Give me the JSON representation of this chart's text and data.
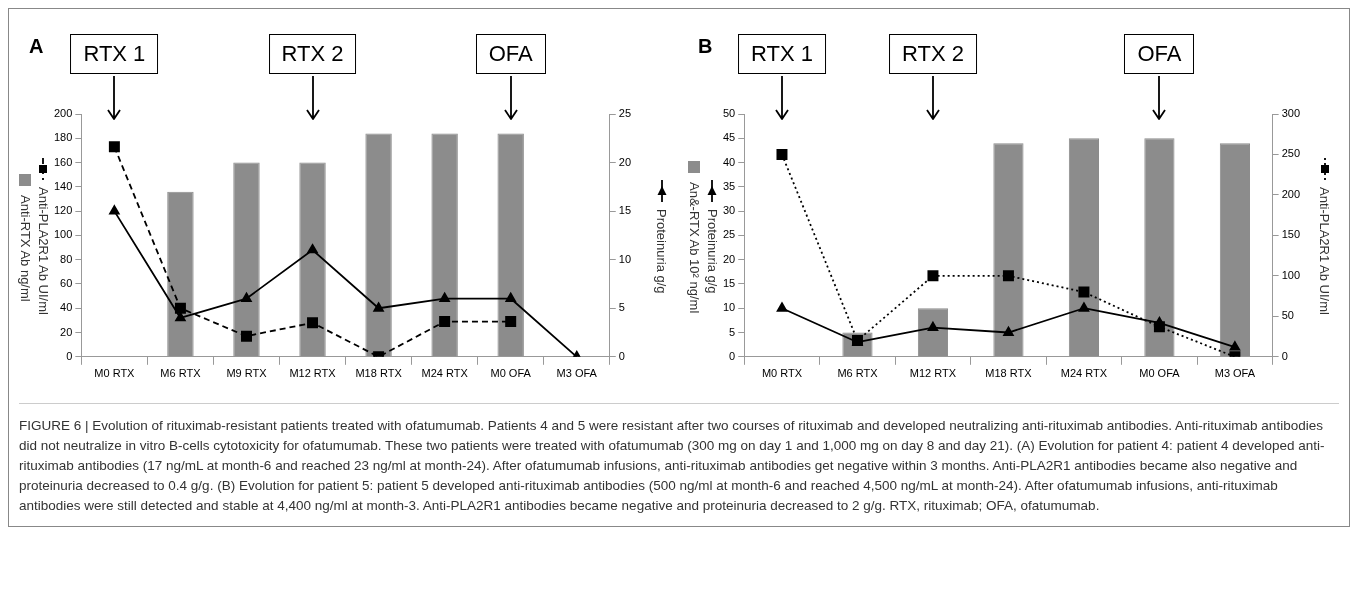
{
  "chart_data": [
    {
      "type": "bar",
      "title": "A",
      "legend": "left",
      "categories": [
        "M0 RTX",
        "M6 RTX",
        "M9 RTX",
        "M12 RTX",
        "M18 RTX",
        "M24 RTX",
        "M0 OFA",
        "M3 OFA"
      ],
      "ylim": [
        0,
        200
      ],
      "yticks": [
        0,
        20,
        40,
        60,
        80,
        100,
        120,
        140,
        160,
        180,
        200
      ],
      "y2lim": [
        0,
        25
      ],
      "y2ticks": [
        0,
        5,
        10,
        15,
        20,
        25
      ],
      "grid": false,
      "series": [
        {
          "name": "Anti-RTX Ab ng/ml",
          "color": "#8c8c8c",
          "values": [
            null,
            136,
            160,
            160,
            184,
            184,
            184,
            null
          ]
        },
        {
          "name": "Anti-PLA2R1 Ab UI/ml",
          "type": "line",
          "color": "#000000",
          "marker": "square",
          "line_style": "dashed",
          "values": [
            173,
            40,
            17,
            28,
            0,
            29,
            29,
            null
          ]
        },
        {
          "name": "Proteinuria g/g",
          "type": "line",
          "axis": "y2",
          "color": "#000000",
          "marker": "triangle",
          "line_style": "solid",
          "values": [
            15,
            4,
            6,
            11,
            5,
            6,
            6,
            0
          ]
        }
      ],
      "annotations": [
        {
          "text": "RTX 1",
          "x": "M0 RTX"
        },
        {
          "text": "RTX 2",
          "x": "M12 RTX"
        },
        {
          "text": "OFA",
          "x": "M0 OFA"
        }
      ]
    },
    {
      "type": "bar",
      "title": "B",
      "legend": "left",
      "categories": [
        "M0 RTX",
        "M6 RTX",
        "M12 RTX",
        "M18 RTX",
        "M24 RTX",
        "M0 OFA",
        "M3 OFA"
      ],
      "ylim": [
        0,
        50
      ],
      "yticks": [
        0,
        5,
        10,
        15,
        20,
        25,
        30,
        35,
        40,
        45,
        50
      ],
      "y2lim": [
        0,
        300
      ],
      "y2ticks": [
        0,
        50,
        100,
        150,
        200,
        250,
        300
      ],
      "grid": false,
      "series": [
        {
          "name": "An&-RTX Ab 10² ng/ml",
          "color": "#8c8c8c",
          "values": [
            null,
            5,
            10,
            44,
            45,
            45,
            44
          ]
        },
        {
          "name": "Proteinuria g/g",
          "type": "line",
          "color": "#000000",
          "marker": "triangle",
          "line_style": "solid",
          "values": [
            10,
            3,
            6,
            5,
            10,
            7,
            2
          ]
        },
        {
          "name": "Anti-PLA2R1 Ab UI/ml",
          "type": "line",
          "axis": "y2",
          "color": "#000000",
          "marker": "square",
          "line_style": "dotted",
          "values": [
            250,
            20,
            100,
            100,
            80,
            37,
            0
          ]
        }
      ],
      "annotations": [
        {
          "text": "RTX 1",
          "x": "M0 RTX"
        },
        {
          "text": "RTX 2",
          "x": "M12 RTX"
        },
        {
          "text": "OFA",
          "x": "M0 OFA"
        },
        "FIGURE 6 | Evolution of rituximab-resistant patients treated with ofatumumab. Patients 4 and 5 were resistant after two courses of rituximab and developed neutralizing anti-rituximab antibodies. Anti-rituximab antibodies did not neutralize in vitro B-cells cytotoxicity for ofatumumab. These two patients were treated with ofatumumab (300 mg on day 1 and 1,000 mg on day 8 and day 21). (A) Evolution for patient 4: patient 4 developed anti-rituximab antibodies (17 ng/mL at month-6 and reached 23 ng/ml at month-24). After ofatumumab infusions, anti-rituximab antibodies get negative within 3 months. Anti-PLA2R1 antibodies became also negative and proteinuria decreased to 0.4 g/g. (B) Evolution for patient 5: patient 5 developed anti-rituximab antibodies (500 ng/ml at month-6 and reached 4,500 ng/mL at month-24). After ofatumumab infusions, anti-rituximab antibodies were still detected and stable at 4,400 ng/ml at month-3. Anti-PLA2R1 antibodies became negative and proteinuria decreased to 2 g/g. RTX, rituximab; OFA, ofatumumab."
      ]
    }
  ]
}
